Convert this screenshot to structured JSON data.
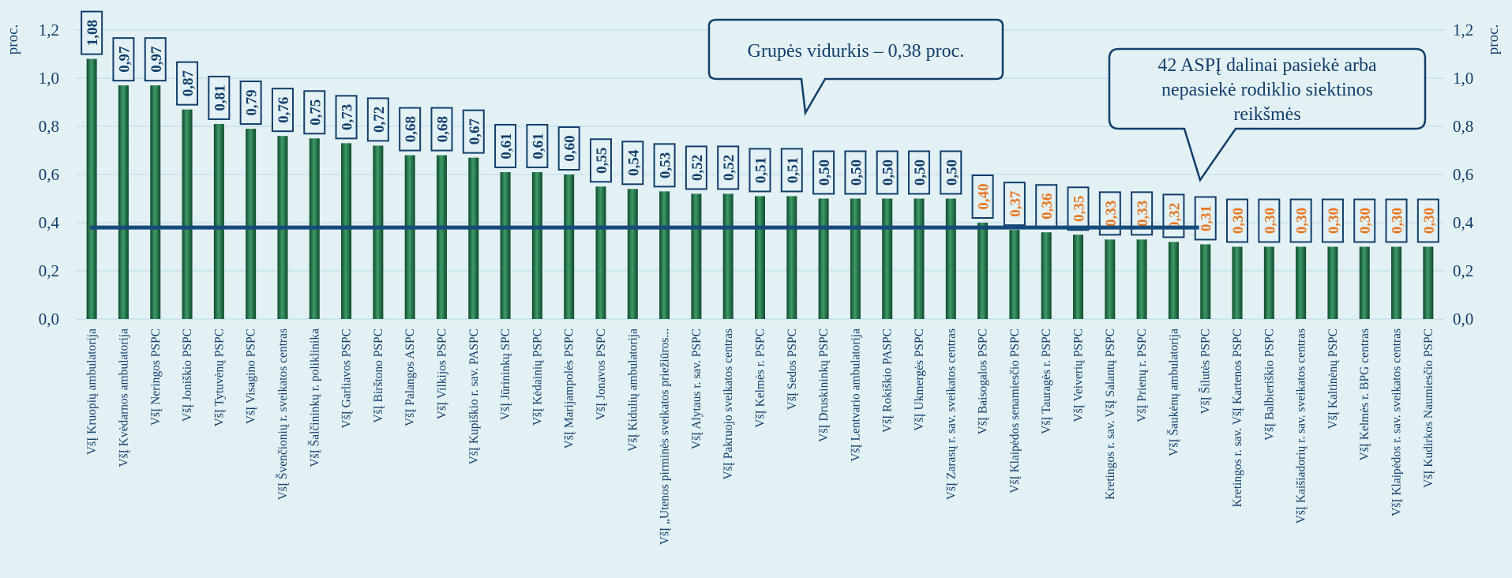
{
  "chart_data": {
    "type": "bar",
    "y_label": "proc.",
    "categories": [
      "VšĮ Kruopių ambulatorija",
      "VšĮ Kvėdarnos ambulatorija",
      "VšĮ Neringos PSPC",
      "VšĮ Joniškio PSPC",
      "VšĮ Tytuvėnų PSPC",
      "VšĮ Visagino PSPC",
      "VšĮ Švenčionių r. sveikatos centras",
      "VšĮ Šalčininkų r. poliklinika",
      "VšĮ Garliavos PSPC",
      "VšĮ Birštono PSPC",
      "VšĮ Palangos ASPC",
      "VšĮ Vilkijos PSPC",
      "VšĮ Kupiškio r. sav. PASPC",
      "VšĮ Jūrininkų SPC",
      "VšĮ Kėdainių PSPC",
      "VšĮ Marijampolės PSPC",
      "VšĮ Jonavos PSPC",
      "VšĮ Kidulių ambulatorija",
      "VšĮ „Utenos pirminės sveikatos priežiūros...",
      "VšĮ Alytaus r. sav. PSPC",
      "VšĮ Pakruojo sveikatos centras",
      "VšĮ Kelmės r. PSPC",
      "VšĮ Sedos PSPC",
      "VšĮ Druskininkų PSPC",
      "VšĮ Lentvario ambulatorija",
      "VšĮ Rokiškio PASPC",
      "VšĮ Ukmergės PSPC",
      "VšĮ Zarasų r. sav. sveikatos centras",
      "VšĮ Baisogalos PSPC",
      "VšĮ Klaipėdos senamiesčio PSPC",
      "VšĮ Tauragės r. PSPC",
      "VšĮ Veiverių PSPC",
      "Kretingos r. sav. VšĮ Salantų PSPC",
      "VšĮ Prienų r. PSPC",
      "VšĮ Šaukėnų ambulatorija",
      "VšĮ Šilutės PSPC",
      "Kretingos r. sav. VšĮ Kartenos PSPC",
      "VšĮ Balbieriškio PSPC",
      "VšĮ Kaišiadorių r. sav. sveikatos centras",
      "VšĮ Kaltinėnų PSPC",
      "VšĮ Kelmės r. BPG centras",
      "VšĮ Klaipėdos r. sav. sveikatos centras",
      "VšĮ Kudirkos Naumiesčio PSPC"
    ],
    "values": [
      1.08,
      0.97,
      0.97,
      0.87,
      0.81,
      0.79,
      0.76,
      0.75,
      0.73,
      0.72,
      0.68,
      0.68,
      0.67,
      0.61,
      0.61,
      0.6,
      0.55,
      0.54,
      0.53,
      0.52,
      0.52,
      0.51,
      0.51,
      0.5,
      0.5,
      0.5,
      0.5,
      0.5,
      0.4,
      0.37,
      0.36,
      0.35,
      0.33,
      0.33,
      0.32,
      0.31,
      0.3,
      0.3,
      0.3,
      0.3,
      0.3,
      0.3,
      0.3
    ],
    "value_labels": [
      "1,08",
      "0,97",
      "0,97",
      "0,87",
      "0,81",
      "0,79",
      "0,76",
      "0,75",
      "0,73",
      "0,72",
      "0,68",
      "0,68",
      "0,67",
      "0,61",
      "0,61",
      "0,60",
      "0,55",
      "0,54",
      "0,53",
      "0,52",
      "0,52",
      "0,51",
      "0,51",
      "0,50",
      "0,50",
      "0,50",
      "0,50",
      "0,50",
      "0,40",
      "0,37",
      "0,36",
      "0,35",
      "0,33",
      "0,33",
      "0,32",
      "0,31",
      "0,30",
      "0,30",
      "0,30",
      "0,30",
      "0,30",
      "0,30",
      "0,30"
    ],
    "color": "#1e6e45",
    "label_colors": [
      "#123f6b",
      "#123f6b",
      "#123f6b",
      "#123f6b",
      "#123f6b",
      "#123f6b",
      "#123f6b",
      "#123f6b",
      "#123f6b",
      "#123f6b",
      "#123f6b",
      "#123f6b",
      "#123f6b",
      "#123f6b",
      "#123f6b",
      "#123f6b",
      "#123f6b",
      "#123f6b",
      "#123f6b",
      "#123f6b",
      "#123f6b",
      "#123f6b",
      "#123f6b",
      "#123f6b",
      "#123f6b",
      "#123f6b",
      "#123f6b",
      "#123f6b",
      "#e87722",
      "#e87722",
      "#e87722",
      "#e87722",
      "#e87722",
      "#e87722",
      "#e87722",
      "#e87722",
      "#e87722",
      "#e87722",
      "#e87722",
      "#e87722",
      "#e87722",
      "#e87722",
      "#e87722"
    ],
    "average": 0.38,
    "average_color": "#174a7c",
    "ylim": [
      0,
      1.2
    ],
    "yticks": [
      {
        "value": 0,
        "label": "0,0"
      },
      {
        "value": 0.2,
        "label": "0,2"
      },
      {
        "value": 0.4,
        "label": "0,4"
      },
      {
        "value": 0.6,
        "label": "0,6"
      },
      {
        "value": 0.8,
        "label": "0,8"
      },
      {
        "value": 1.0,
        "label": "1,0"
      },
      {
        "value": 1.2,
        "label": "1,2"
      }
    ],
    "grid": true,
    "annotations": [
      {
        "lines": [
          "Grupės vidurkis – 0,38 proc."
        ]
      },
      {
        "lines": [
          "42 ASPĮ dalinai pasiekė arba",
          "nepasiekė rodiklio siektinos",
          "reikšmės"
        ]
      }
    ]
  }
}
